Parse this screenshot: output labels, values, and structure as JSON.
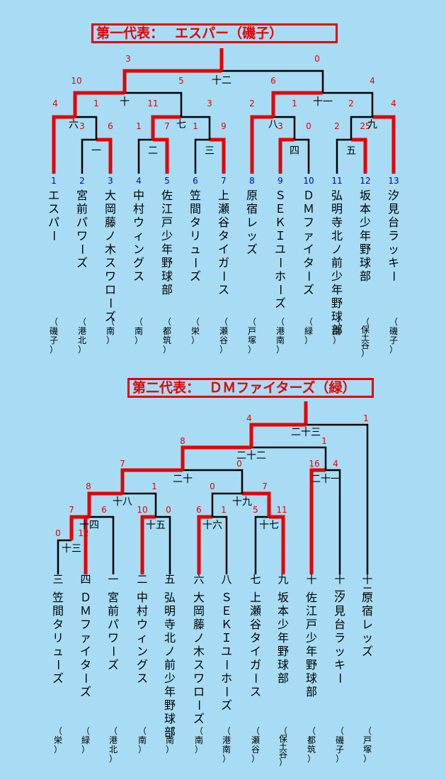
{
  "colors": {
    "background": "#a7dcf4",
    "winner": "#e60000",
    "line": "#000000",
    "team_number": "#0000cc"
  },
  "bracket1": {
    "title": "第一代表：　 エスパー（磯子）",
    "teams": [
      {
        "num": "1",
        "name": "エスパー",
        "region": "磯子"
      },
      {
        "num": "2",
        "name": "宮前パワーズ",
        "region": "港北"
      },
      {
        "num": "3",
        "name": "大岡藤ノ木スワローズ",
        "region": "南"
      },
      {
        "num": "4",
        "name": "中村ウィングス",
        "region": "南"
      },
      {
        "num": "5",
        "name": "佐江戸少年野球部",
        "region": "都筑"
      },
      {
        "num": "6",
        "name": "笠間タリューズ",
        "region": "栄"
      },
      {
        "num": "7",
        "name": "上瀬谷タイガース",
        "region": "瀬谷"
      },
      {
        "num": "8",
        "name": "原宿レッズ",
        "region": "戸塚"
      },
      {
        "num": "9",
        "name": "ＳＥＫＩユーホーズ",
        "region": "港南"
      },
      {
        "num": "10",
        "name": "ＤＭファイターズ",
        "region": "緑"
      },
      {
        "num": "11",
        "name": "弘明寺北ノ前少年野球部",
        "region": "南"
      },
      {
        "num": "12",
        "name": "坂本少年野球部",
        "region": "保土谷"
      },
      {
        "num": "13",
        "name": "汐見台ラッキー",
        "region": "磯子"
      }
    ],
    "games": [
      {
        "label": "一",
        "left_score": "3",
        "right_score": "6"
      },
      {
        "label": "二",
        "left_score": "1",
        "right_score": "7"
      },
      {
        "label": "三",
        "left_score": "1",
        "right_score": "9"
      },
      {
        "label": "四",
        "left_score": "3",
        "right_score": "0"
      },
      {
        "label": "五",
        "left_score": "2",
        "right_score": "25"
      },
      {
        "label": "六",
        "left_score": "4",
        "right_score": "1"
      },
      {
        "label": "七",
        "left_score": "11",
        "right_score": "3"
      },
      {
        "label": "八",
        "left_score": "2",
        "right_score": "1"
      },
      {
        "label": "九",
        "left_score": "2",
        "right_score": "4"
      },
      {
        "label": "十",
        "left_score": "10",
        "right_score": "5"
      },
      {
        "label": "十一",
        "left_score": "6",
        "right_score": "4"
      },
      {
        "label": "十二",
        "left_score": "3",
        "right_score": "0"
      }
    ]
  },
  "bracket2": {
    "title": "第二代表：  ＤＭファイターズ（緑）",
    "teams": [
      {
        "slot": "三",
        "name": "笠間タリューズ",
        "region": "栄"
      },
      {
        "slot": "四",
        "name": "ＤＭファイターズ",
        "region": "緑"
      },
      {
        "slot": "一",
        "name": "宮前パワーズ",
        "region": "港北"
      },
      {
        "slot": "二",
        "name": "中村ウィングス",
        "region": "南"
      },
      {
        "slot": "五",
        "name": "弘明寺北ノ前少年野球部",
        "region": "南"
      },
      {
        "slot": "六",
        "name": "大岡藤ノ木スワローズ",
        "region": "南"
      },
      {
        "slot": "八",
        "name": "ＳＥＫＩユーホーズ",
        "region": "港南"
      },
      {
        "slot": "七",
        "name": "上瀬谷タイガース",
        "region": "瀬谷"
      },
      {
        "slot": "九",
        "name": "坂本少年野球部",
        "region": "保土谷"
      },
      {
        "slot": "十",
        "name": "佐江戸少年野球部",
        "region": "都筑"
      },
      {
        "slot": "十一",
        "name": "汐見台ラッキー",
        "region": "磯子"
      },
      {
        "slot": "十二",
        "name": "原宿レッズ",
        "region": "戸塚"
      }
    ],
    "games": [
      {
        "label": "十三",
        "left_score": "0",
        "right_score": "12"
      },
      {
        "label": "十四",
        "left_score": "7",
        "right_score": "6"
      },
      {
        "label": "十五",
        "left_score": "10",
        "right_score": "0"
      },
      {
        "label": "十六",
        "left_score": "6",
        "right_score": "1"
      },
      {
        "label": "十七",
        "left_score": "5",
        "right_score": "11"
      },
      {
        "label": "十八",
        "left_score": "8",
        "right_score": "1"
      },
      {
        "label": "十九",
        "left_score": "0",
        "right_score": "7"
      },
      {
        "label": "二十",
        "left_score": "7",
        "right_score": "0"
      },
      {
        "label": "二十一",
        "left_score": "16",
        "right_score": "4"
      },
      {
        "label": "二十二",
        "left_score": "8",
        "right_score": "1"
      },
      {
        "label": "二十三",
        "left_score": "4",
        "right_score": "1"
      }
    ]
  }
}
